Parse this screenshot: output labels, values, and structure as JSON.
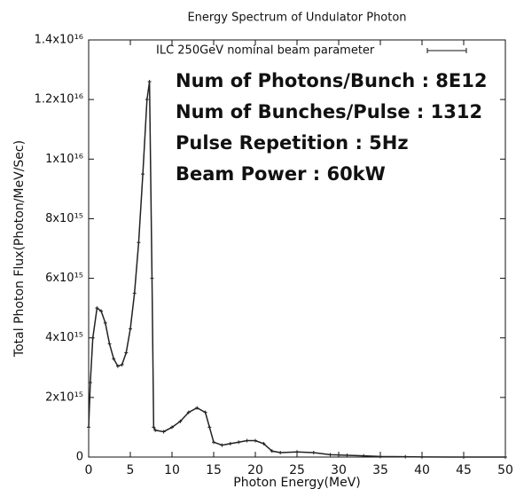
{
  "chart_data": {
    "type": "line",
    "title": "Energy Spectrum of Undulator Photon",
    "x_label": "Photon Energy(MeV)",
    "y_label": "Total Photon Flux(Photon/MeV/Sec)",
    "legend_label": "ILC 250GeV nominal beam parameter",
    "annotations": [
      "Num of Photons/Bunch : 8E12",
      "Num of Bunches/Pulse : 1312",
      "Pulse Repetition : 5Hz",
      "Beam Power : 60kW"
    ],
    "xlim": [
      0,
      50
    ],
    "ylim": [
      0,
      1.4e+16
    ],
    "xticks": [
      0,
      5,
      10,
      15,
      20,
      25,
      30,
      35,
      40,
      45,
      50
    ],
    "yticks": [
      0,
      {
        "value": 2000000000000000.0,
        "label": "2x10¹⁵"
      },
      {
        "value": 4000000000000000.0,
        "label": "4x10¹⁵"
      },
      {
        "value": 6000000000000000.0,
        "label": "6x10¹⁵"
      },
      {
        "value": 8000000000000000.0,
        "label": "8x10¹⁵"
      },
      {
        "value": 1e+16,
        "label": "1x10¹⁶"
      },
      {
        "value": 1.2e+16,
        "label": "1.2x10¹⁶"
      },
      {
        "value": 1.4e+16,
        "label": "1.4x10¹⁶"
      }
    ],
    "color": "#222222",
    "x": [
      0,
      0.2,
      0.5,
      1,
      1.5,
      2,
      2.5,
      3,
      3.5,
      4,
      4.5,
      5,
      5.5,
      6,
      6.5,
      7,
      7.3,
      7.6,
      7.8,
      8,
      9,
      10,
      11,
      12,
      13,
      14,
      14.5,
      15,
      16,
      17,
      18,
      19,
      20,
      21,
      22,
      23,
      25,
      27,
      29,
      31,
      33,
      35,
      38,
      40,
      45,
      50
    ],
    "values": [
      1000000000000000.0,
      2500000000000000.0,
      4000000000000000.0,
      5000000000000000.0,
      4900000000000000.0,
      4500000000000000.0,
      3800000000000000.0,
      3300000000000000.0,
      3050000000000000.0,
      3100000000000000.0,
      3500000000000000.0,
      4300000000000000.0,
      5500000000000000.0,
      7200000000000000.0,
      9500000000000000.0,
      1.2e+16,
      1.26e+16,
      6000000000000000.0,
      1000000000000000.0,
      900000000000000.0,
      850000000000000.0,
      1000000000000000.0,
      1200000000000000.0,
      1500000000000000.0,
      1650000000000000.0,
      1500000000000000.0,
      1000000000000000.0,
      500000000000000.0,
      400000000000000.0,
      450000000000000.0,
      500000000000000.0,
      550000000000000.0,
      550000000000000.0,
      450000000000000.0,
      200000000000000.0,
      150000000000000.0,
      170000000000000.0,
      150000000000000.0,
      80000000000000.0,
      60000000000000.0,
      40000000000000.0,
      20000000000000.0,
      10000000000000.0,
      5000000000000.0,
      0,
      0
    ]
  }
}
